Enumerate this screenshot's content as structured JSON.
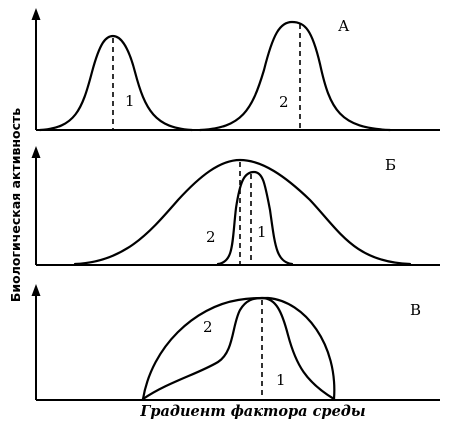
{
  "figure": {
    "y_axis_label": "Биологическая активность",
    "x_axis_label": "Градиент фактора среды",
    "panels": [
      {
        "letter": "А",
        "curve_labels": [
          "1",
          "2"
        ]
      },
      {
        "letter": "Б",
        "curve_labels": [
          "2",
          "1"
        ]
      },
      {
        "letter": "В",
        "curve_labels": [
          "2",
          "1"
        ]
      }
    ]
  }
}
